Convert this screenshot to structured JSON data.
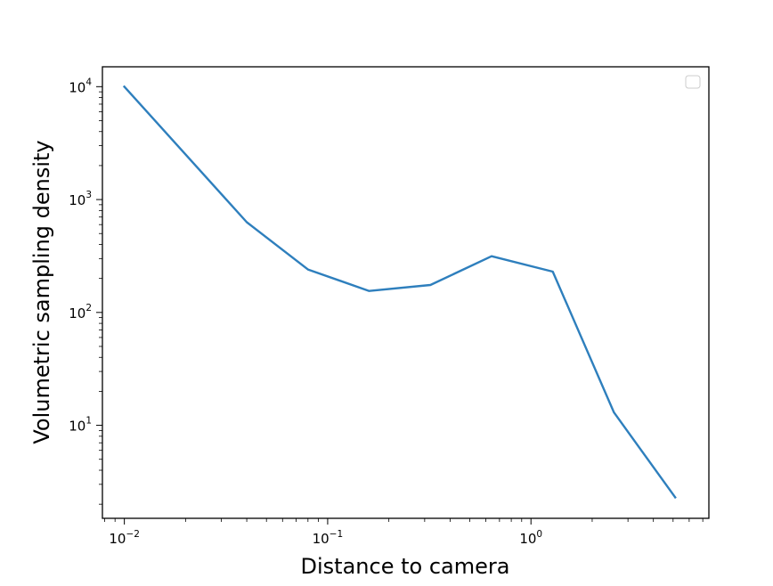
{
  "chart_data": {
    "type": "line",
    "title": "",
    "xlabel": "Distance to camera",
    "ylabel": "Volumetric sampling density",
    "xscale": "log",
    "yscale": "log",
    "xlim": [
      0.0078,
      7.5
    ],
    "ylim": [
      1.5,
      15000
    ],
    "x_ticks": [
      {
        "value": 0.01,
        "base": "10",
        "exp": "−2"
      },
      {
        "value": 0.1,
        "base": "10",
        "exp": "−1"
      },
      {
        "value": 1,
        "base": "10",
        "exp": "0"
      }
    ],
    "y_ticks": [
      {
        "value": 10,
        "base": "10",
        "exp": "1"
      },
      {
        "value": 100,
        "base": "10",
        "exp": "2"
      },
      {
        "value": 1000,
        "base": "10",
        "exp": "3"
      },
      {
        "value": 10000,
        "base": "10",
        "exp": "4"
      }
    ],
    "grid": false,
    "legend": {
      "placement": "top-right",
      "entries": []
    },
    "series": [
      {
        "color": "#2e7fbd",
        "x": [
          0.01,
          0.04,
          0.08,
          0.16,
          0.32,
          0.64,
          1.28,
          2.56,
          5.12
        ],
        "y": [
          10000,
          630,
          240,
          155,
          175,
          315,
          230,
          13,
          2.3
        ]
      }
    ]
  }
}
